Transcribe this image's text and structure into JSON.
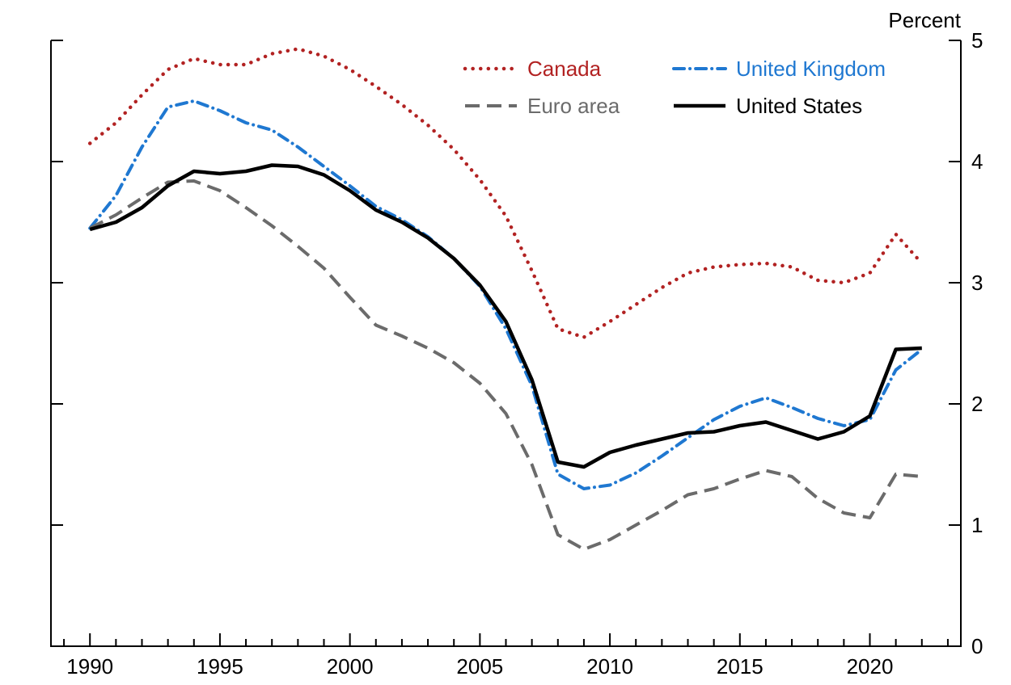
{
  "chart_data": {
    "type": "line",
    "title": "",
    "unit_label": "Percent",
    "xlabel": "",
    "ylabel": "Percent",
    "xlim": [
      1988.5,
      2023.5
    ],
    "ylim": [
      0,
      5
    ],
    "y_ticks": [
      0,
      1,
      2,
      3,
      4,
      5
    ],
    "x_ticks_major": [
      1990,
      1995,
      2000,
      2005,
      2010,
      2015,
      2020
    ],
    "x_minor_tick_step": 1,
    "grid": false,
    "legend_position": "inside-top",
    "legend_rows": [
      [
        "Canada",
        "United Kingdom"
      ],
      [
        "Euro area",
        "United States"
      ]
    ],
    "x": [
      1990,
      1991,
      1992,
      1993,
      1994,
      1995,
      1996,
      1997,
      1998,
      1999,
      2000,
      2001,
      2002,
      2003,
      2004,
      2005,
      2006,
      2007,
      2008,
      2009,
      2010,
      2011,
      2012,
      2013,
      2014,
      2015,
      2016,
      2017,
      2018,
      2019,
      2020,
      2021,
      2022
    ],
    "series": [
      {
        "name": "Canada",
        "color": "#b22222",
        "style": "dotted",
        "values": [
          4.15,
          4.32,
          4.55,
          4.76,
          4.85,
          4.8,
          4.8,
          4.89,
          4.93,
          4.87,
          4.76,
          4.62,
          4.47,
          4.3,
          4.1,
          3.85,
          3.55,
          3.1,
          2.62,
          2.55,
          2.68,
          2.82,
          2.96,
          3.08,
          3.13,
          3.15,
          3.16,
          3.13,
          3.02,
          3.0,
          3.08,
          3.4,
          3.16
        ]
      },
      {
        "name": "United Kingdom",
        "color": "#1f78d1",
        "style": "dash-dot",
        "values": [
          3.45,
          3.72,
          4.12,
          4.45,
          4.5,
          4.42,
          4.32,
          4.26,
          4.12,
          3.96,
          3.8,
          3.63,
          3.52,
          3.38,
          3.2,
          2.97,
          2.62,
          2.15,
          1.42,
          1.3,
          1.33,
          1.43,
          1.57,
          1.72,
          1.87,
          1.98,
          2.05,
          1.97,
          1.88,
          1.82,
          1.87,
          2.28,
          2.45
        ]
      },
      {
        "name": "Euro area",
        "color": "#6b6b6b",
        "style": "dashed",
        "values": [
          3.45,
          3.56,
          3.7,
          3.83,
          3.84,
          3.76,
          3.62,
          3.47,
          3.3,
          3.12,
          2.88,
          2.65,
          2.56,
          2.46,
          2.34,
          2.17,
          1.92,
          1.5,
          0.92,
          0.8,
          0.88,
          1.0,
          1.12,
          1.25,
          1.3,
          1.38,
          1.45,
          1.4,
          1.22,
          1.1,
          1.06,
          1.42,
          1.4
        ]
      },
      {
        "name": "United States",
        "color": "#000000",
        "style": "solid",
        "values": [
          3.44,
          3.5,
          3.62,
          3.8,
          3.92,
          3.9,
          3.92,
          3.97,
          3.96,
          3.89,
          3.76,
          3.6,
          3.5,
          3.37,
          3.2,
          2.98,
          2.68,
          2.2,
          1.52,
          1.48,
          1.6,
          1.66,
          1.71,
          1.76,
          1.77,
          1.82,
          1.85,
          1.78,
          1.71,
          1.77,
          1.9,
          2.45,
          2.46
        ]
      }
    ]
  }
}
